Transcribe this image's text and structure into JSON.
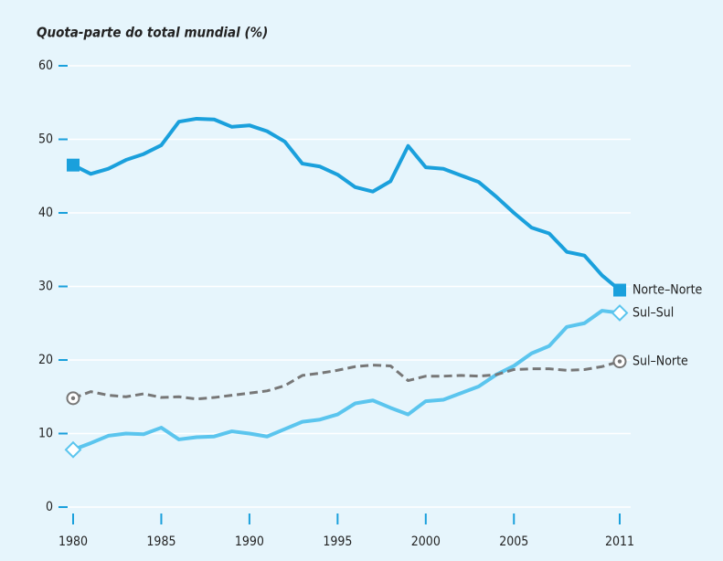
{
  "chart_data": {
    "type": "line",
    "title": "Quota-parte do total mundial  (%)",
    "x": [
      1980,
      1981,
      1982,
      1983,
      1984,
      1985,
      1986,
      1987,
      1988,
      1989,
      1990,
      1991,
      1992,
      1993,
      1994,
      1995,
      1996,
      1997,
      1998,
      1999,
      2000,
      2001,
      2002,
      2003,
      2004,
      2005,
      2006,
      2007,
      2008,
      2009,
      2010,
      2011
    ],
    "series": [
      {
        "name": "Norte–Norte",
        "color": "#1aa0dc",
        "marker": "square",
        "line_style": "solid",
        "values": [
          46.5,
          45.3,
          46.0,
          47.2,
          48.0,
          49.2,
          52.4,
          52.8,
          52.7,
          51.7,
          51.9,
          51.1,
          49.7,
          46.7,
          46.3,
          45.2,
          43.5,
          42.9,
          44.3,
          49.1,
          46.2,
          46.0,
          45.1,
          44.2,
          42.2,
          40.0,
          38.0,
          37.2,
          34.7,
          34.2,
          31.5,
          29.5
        ]
      },
      {
        "name": "Sul–Sul",
        "color": "#5bc5ee",
        "marker": "diamond",
        "line_style": "solid",
        "values": [
          7.8,
          8.7,
          9.7,
          10.0,
          9.9,
          10.8,
          9.2,
          9.5,
          9.6,
          10.3,
          10.0,
          9.6,
          10.6,
          11.6,
          11.9,
          12.6,
          14.1,
          14.5,
          13.5,
          12.6,
          14.4,
          14.6,
          15.5,
          16.4,
          18.0,
          19.2,
          20.9,
          21.9,
          24.5,
          25.0,
          26.7,
          26.4
        ]
      },
      {
        "name": "Sul–Norte",
        "color": "#777777",
        "marker": "circle",
        "line_style": "dashed",
        "values": [
          14.8,
          15.7,
          15.2,
          15.0,
          15.4,
          14.9,
          15.0,
          14.7,
          14.9,
          15.2,
          15.5,
          15.8,
          16.5,
          17.9,
          18.2,
          18.6,
          19.1,
          19.3,
          19.2,
          17.2,
          17.8,
          17.8,
          17.9,
          17.8,
          18.0,
          18.7,
          18.8,
          18.8,
          18.6,
          18.7,
          19.1,
          19.8
        ]
      }
    ],
    "xlim": [
      1980,
      2011
    ],
    "xticks": [
      1980,
      1985,
      1990,
      1995,
      2000,
      2005,
      2011
    ],
    "ylim": [
      0,
      60
    ],
    "yticks": [
      0,
      10,
      20,
      30,
      40,
      50,
      60
    ],
    "grid": true
  }
}
